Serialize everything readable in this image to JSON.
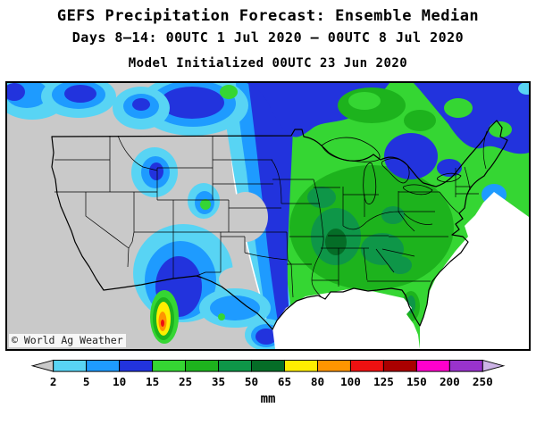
{
  "header": {
    "title": "GEFS Precipitation Forecast: Ensemble Median",
    "subtitle": "Days 8–14: 00UTC 1 Jul 2020 — 00UTC 8 Jul 2020",
    "init_line": "Model Initialized 00UTC 23 Jun 2020"
  },
  "map": {
    "credit": "© World Ag Weather"
  },
  "colorbar": {
    "unit": "mm",
    "tick_labels": [
      "2",
      "5",
      "10",
      "15",
      "25",
      "35",
      "50",
      "65",
      "80",
      "100",
      "125",
      "150",
      "200",
      "250"
    ],
    "segment_colors": [
      "#58d4f4",
      "#1e9bff",
      "#2233dd",
      "#35d633",
      "#1db31d",
      "#0e9648",
      "#056d27",
      "#ffee00",
      "#ff9500",
      "#ee1111",
      "#aa0000",
      "#ff00cc",
      "#9933cc"
    ],
    "left_arrow_color": "#c9c9c9",
    "right_arrow_color": "#cdb4e6"
  },
  "chart_data": {
    "type": "heatmap",
    "title": "GEFS Precipitation Forecast: Ensemble Median",
    "subtitle": "Days 8–14: 00UTC 1 Jul 2020 — 00UTC 8 Jul 2020",
    "model_initialized": "00UTC 23 Jun 2020",
    "units": "mm",
    "scale_breaks_mm": [
      2,
      5,
      10,
      15,
      25,
      35,
      50,
      65,
      80,
      100,
      125,
      150,
      200,
      250
    ],
    "scale_colors_low_to_high": [
      "#c9c9c9",
      "#58d4f4",
      "#1e9bff",
      "#2233dd",
      "#35d633",
      "#1db31d",
      "#0e9648",
      "#056d27",
      "#ffee00",
      "#ff9500",
      "#ee1111",
      "#aa0000",
      "#ff00cc",
      "#9933cc",
      "#cdb4e6"
    ],
    "legend_position": "bottom",
    "regions": [
      {
        "area": "Pacific coast and Great Basin (CA, NV, western AZ/UT)",
        "value_mm": "< 2"
      },
      {
        "area": "Pacific Northwest coast",
        "value_mm": "2-15"
      },
      {
        "area": "Montana / northern Plains band",
        "value_mm": "10-15"
      },
      {
        "area": "Wyoming–Utah interior pocket",
        "value_mm": "2-15"
      },
      {
        "area": "Nebraska panhandle dry pocket",
        "value_mm": "< 2"
      },
      {
        "area": "Central Plains north–south band (ND to TX)",
        "value_mm": "5-15"
      },
      {
        "area": "Colorado Rockies spot",
        "value_mm": "15-25"
      },
      {
        "area": "Eastern half of US (Midwest, South, East Coast)",
        "value_mm": "15-35"
      },
      {
        "area": "Mid-South core (MO, AR, TN, KY, MS, AL, GA)",
        "value_mm": "35-65"
      },
      {
        "area": "Florida peninsula",
        "value_mm": "15-50"
      },
      {
        "area": "Great Lakes / New England patches",
        "value_mm": "10-25"
      },
      {
        "area": "Northwest Mexico (Sierra Madre) maximum",
        "value_mm": "50-125"
      }
    ]
  }
}
